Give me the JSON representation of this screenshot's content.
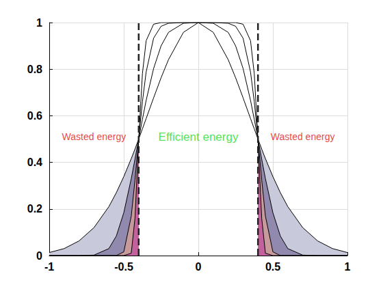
{
  "chart_data": {
    "type": "line",
    "x": [
      -1,
      -0.9,
      -0.8,
      -0.7,
      -0.6,
      -0.55,
      -0.5,
      -0.45,
      -0.425,
      -0.4,
      -0.375,
      -0.35,
      -0.3,
      -0.25,
      -0.2,
      -0.1,
      0,
      0.1,
      0.2,
      0.25,
      0.3,
      0.35,
      0.375,
      0.4,
      0.425,
      0.45,
      0.5,
      0.55,
      0.6,
      0.7,
      0.8,
      0.9,
      1
    ],
    "series": [
      {
        "color": "#c9c9dc",
        "values": [
          0.013,
          0.03,
          0.063,
          0.12,
          0.21,
          0.27,
          0.339,
          0.416,
          0.457,
          0.5,
          0.544,
          0.588,
          0.677,
          0.763,
          0.841,
          0.958,
          1,
          0.958,
          0.841,
          0.763,
          0.677,
          0.588,
          0.544,
          0.5,
          0.457,
          0.416,
          0.339,
          0.27,
          0.21,
          0.12,
          0.063,
          0.03,
          0.013
        ]
      },
      {
        "color": "#9189ae",
        "values": [
          0,
          0,
          0,
          0.002,
          0.03,
          0.084,
          0.184,
          0.33,
          0.414,
          0.5,
          0.585,
          0.666,
          0.803,
          0.9,
          0.958,
          0.997,
          1,
          0.997,
          0.958,
          0.9,
          0.803,
          0.666,
          0.585,
          0.5,
          0.414,
          0.33,
          0.184,
          0.084,
          0.03,
          0.002,
          0,
          0,
          0
        ]
      },
      {
        "color": "#c99a9c",
        "values": [
          0,
          0,
          0,
          0,
          0,
          0,
          0.016,
          0.169,
          0.324,
          0.5,
          0.661,
          0.788,
          0.933,
          0.984,
          0.997,
          1,
          1,
          1,
          0.997,
          0.984,
          0.933,
          0.788,
          0.661,
          0.5,
          0.324,
          0.169,
          0.016,
          0,
          0,
          0,
          0,
          0,
          0
        ]
      },
      {
        "color": "#c2619c",
        "values": [
          0,
          0,
          0,
          0,
          0,
          0,
          0,
          0.01,
          0.16,
          0.5,
          0.781,
          0.922,
          0.993,
          1,
          1,
          1,
          1,
          1,
          1,
          1,
          0.993,
          0.922,
          0.781,
          0.5,
          0.16,
          0.01,
          0,
          0,
          0,
          0,
          0,
          0,
          0
        ]
      }
    ],
    "vlines": [
      -0.4,
      0.4
    ],
    "annotations": [
      {
        "text": "Wasted energy",
        "x": -0.7,
        "y": 0.51,
        "color": "#e01010"
      },
      {
        "text": "Efficient energy",
        "x": 0,
        "y": 0.51,
        "color": "#22dd22"
      },
      {
        "text": "Wasted energy",
        "x": 0.7,
        "y": 0.51,
        "color": "#e01010"
      }
    ],
    "xlim": [
      -1,
      1
    ],
    "xticks": [
      -1,
      -0.5,
      0,
      0.5,
      1
    ],
    "ylim": [
      0,
      1
    ],
    "yticks": [
      0,
      0.2,
      0.4,
      0.6,
      0.8,
      1
    ],
    "grid": true
  }
}
